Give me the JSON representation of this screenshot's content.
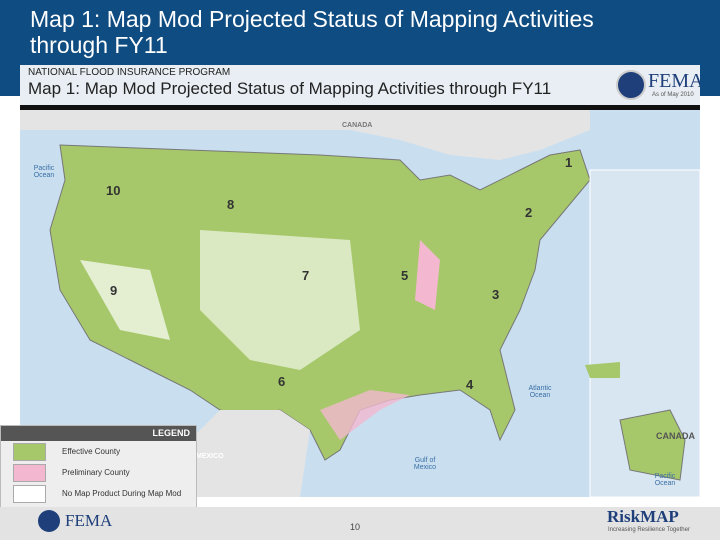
{
  "slide": {
    "title": "Map 1: Map Mod Projected Status of Mapping Activities through FY11",
    "page_number": "10"
  },
  "map": {
    "program": "NATIONAL FLOOD INSURANCE PROGRAM",
    "title": "Map 1:  Map Mod Projected Status of Mapping Activities through FY11",
    "logo": "FEMA",
    "as_of": "As of May 2010",
    "labels": {
      "canada": "CANADA",
      "pacific": "Pacific Ocean",
      "atlantic": "Atlantic Ocean",
      "mexico": "MEXICO",
      "gulf": "Gulf of Mexico",
      "canada2": "CANADA",
      "pacific2": "Pacific Ocean"
    },
    "regions": [
      "1",
      "2",
      "3",
      "4",
      "5",
      "6",
      "7",
      "8",
      "9",
      "10"
    ],
    "colors": {
      "effective": "#a6c86a",
      "preliminary": "#f3b8cf",
      "no_product": "#ffffff",
      "water": "#c9dff0"
    }
  },
  "legend": {
    "title": "LEGEND",
    "items": [
      {
        "label": "Effective County",
        "color": "#a6c86a"
      },
      {
        "label": "Preliminary County",
        "color": "#f3b8cf"
      },
      {
        "label": "No Map Product During Map Mod",
        "color": "#ffffff"
      }
    ]
  },
  "footer": {
    "fema": "FEMA",
    "riskmap": "RiskMAP",
    "tagline": "Increasing Resilience Together"
  }
}
